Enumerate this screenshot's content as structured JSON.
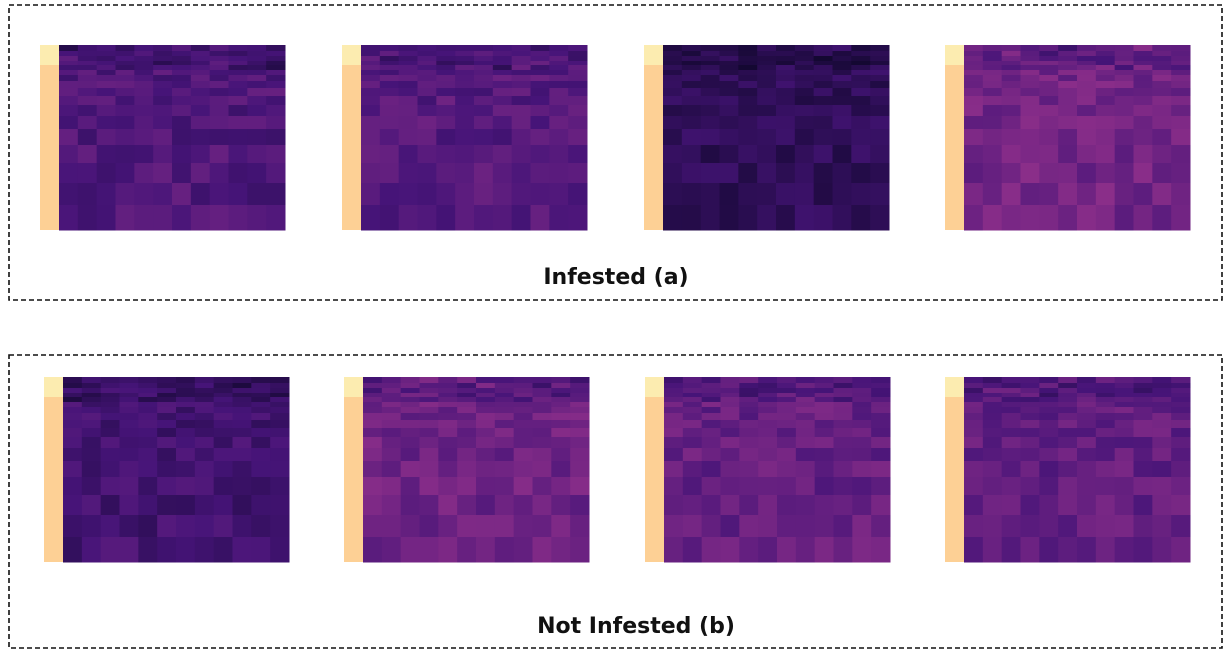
{
  "panels": [
    {
      "label": "Infested (a)"
    },
    {
      "label": "Not Infested (b)"
    }
  ]
}
